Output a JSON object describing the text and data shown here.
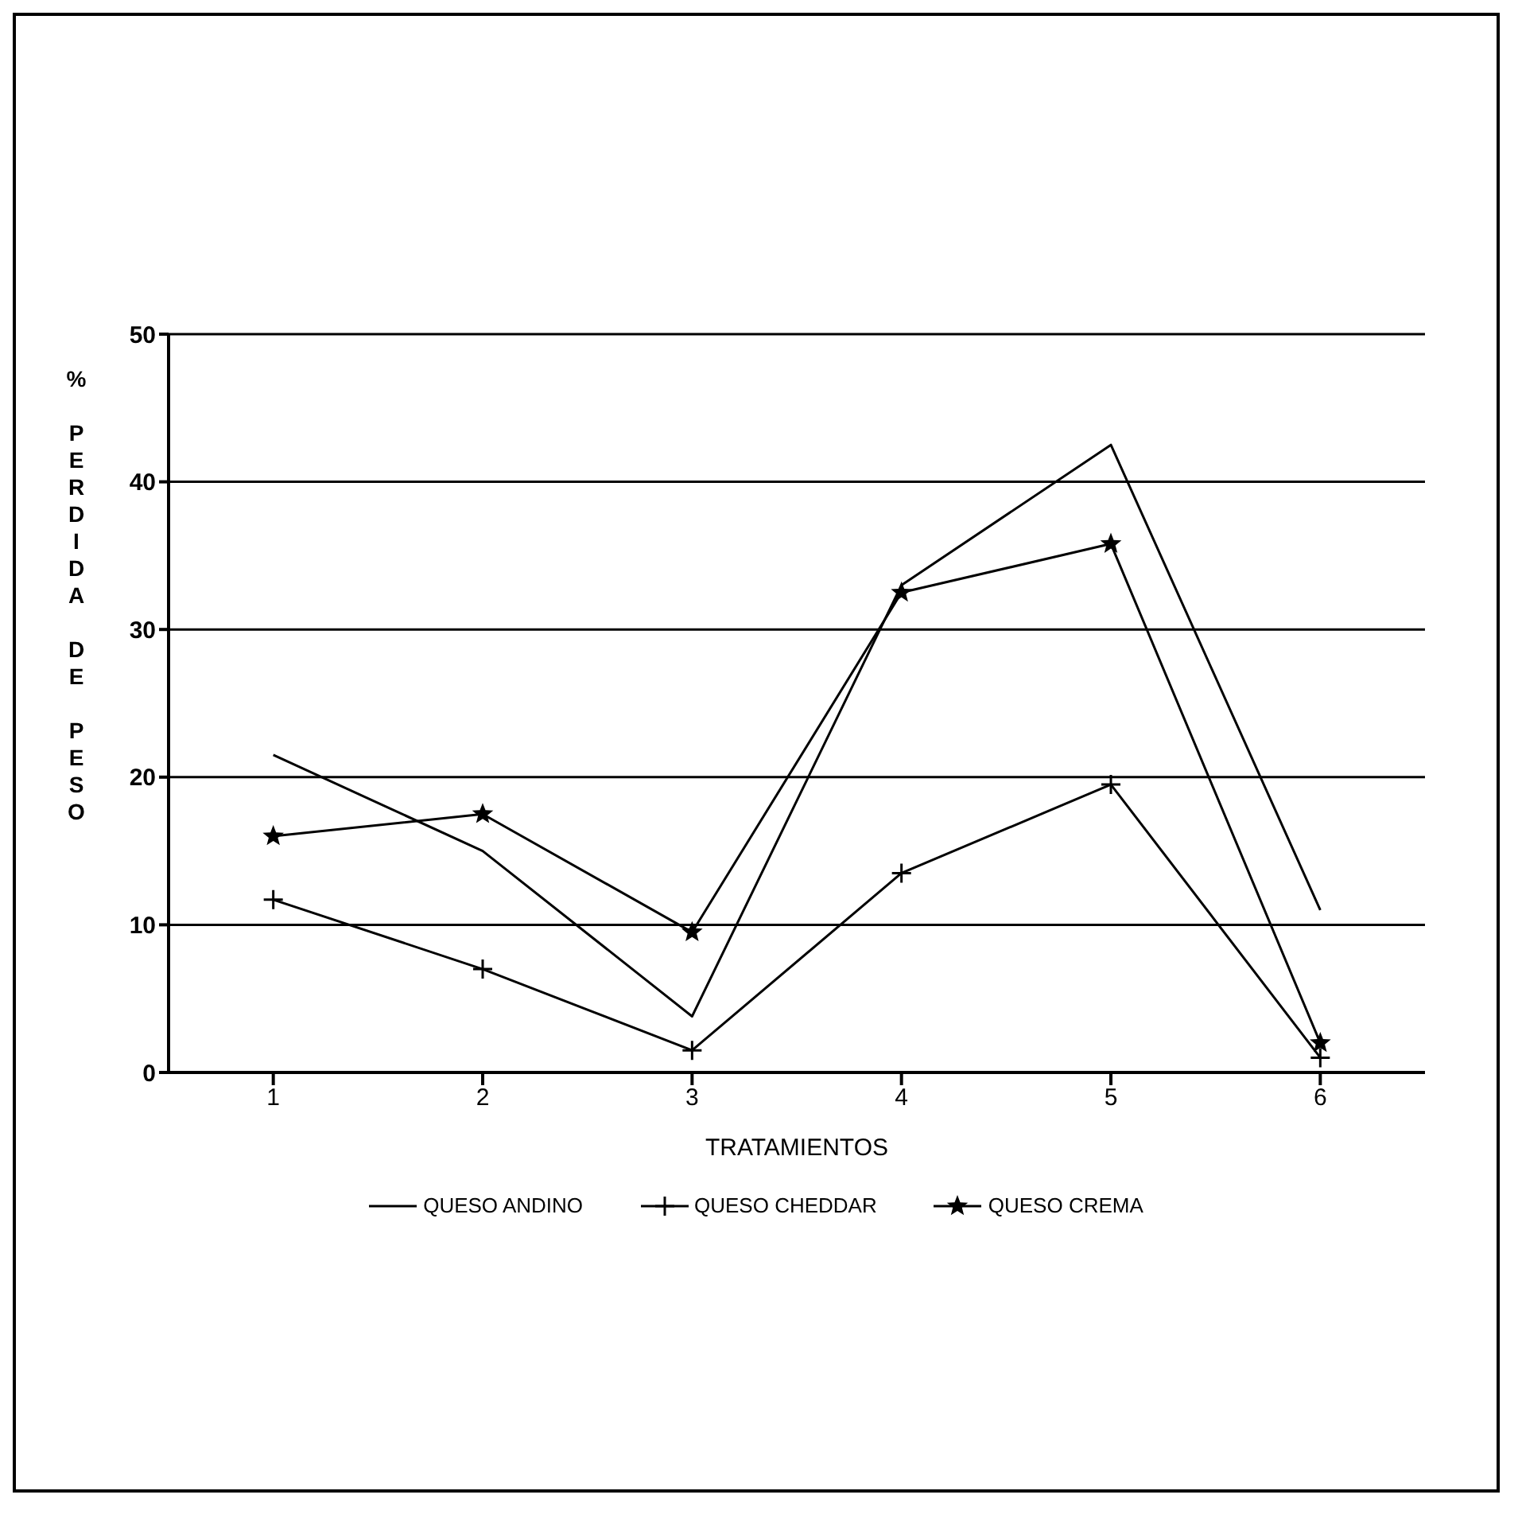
{
  "chart_data": {
    "type": "line",
    "xlabel": "TRATAMIENTOS",
    "ylabel": "% PERDIDA DE PESO",
    "categories": [
      "1",
      "2",
      "3",
      "4",
      "5",
      "6"
    ],
    "series": [
      {
        "name": "QUESO ANDINO",
        "color": "#000000",
        "marker": "none",
        "values": [
          21.5,
          15,
          3.8,
          33,
          42.5,
          11
        ]
      },
      {
        "name": "QUESO CHEDDAR",
        "color": "#000000",
        "marker": "cross",
        "values": [
          11.7,
          7,
          1.5,
          13.5,
          19.5,
          1
        ]
      },
      {
        "name": "QUESO CREMA",
        "color": "#000000",
        "marker": "star",
        "values": [
          16,
          17.5,
          9.5,
          32.5,
          35.8,
          2
        ]
      }
    ],
    "ylim": [
      0,
      50
    ],
    "yticks": [
      0,
      10,
      20,
      30,
      40,
      50
    ],
    "grid": "y",
    "legend": "bottom"
  }
}
